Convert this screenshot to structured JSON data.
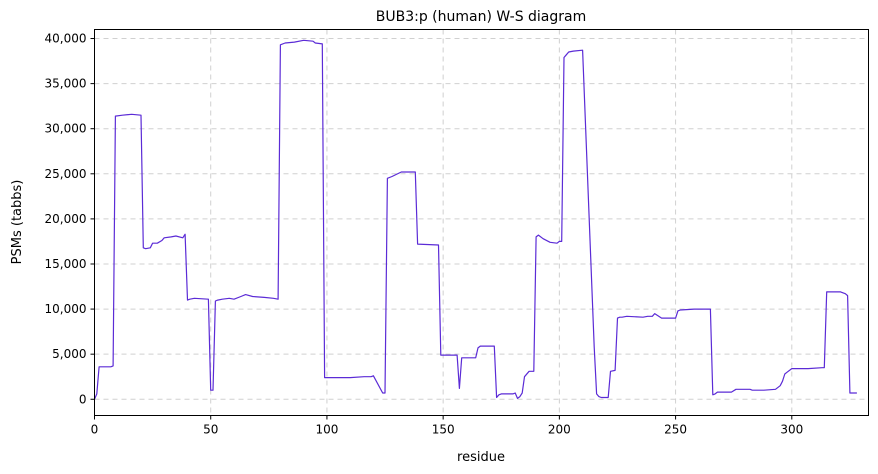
{
  "chart_data": {
    "type": "line",
    "title": "BUB3:p (human) W-S diagram",
    "xlabel": "residue",
    "ylabel": "PSMs (tabbs)",
    "xlim": [
      0,
      333
    ],
    "ylim": [
      -1800,
      41000
    ],
    "x_ticks": [
      0,
      50,
      100,
      150,
      200,
      250,
      300
    ],
    "x_tick_labels": [
      "0",
      "50",
      "100",
      "150",
      "200",
      "250",
      "300"
    ],
    "y_ticks": [
      0,
      5000,
      10000,
      15000,
      20000,
      25000,
      30000,
      35000,
      40000
    ],
    "y_tick_labels": [
      "0",
      "5,000",
      "10,000",
      "15,000",
      "20,000",
      "25,000",
      "30,000",
      "35,000",
      "40,000"
    ],
    "grid": true,
    "line_color": "#5b2bd6",
    "series": [
      {
        "x": [
          0,
          1,
          2,
          7,
          8,
          9,
          12,
          16,
          20,
          21,
          22,
          24,
          25,
          27,
          29,
          30,
          33,
          35,
          38,
          39,
          40,
          41,
          43,
          49,
          50,
          51,
          52,
          53,
          55,
          58,
          60,
          63,
          65,
          68,
          73,
          77,
          79,
          80,
          82,
          86,
          90,
          94,
          95,
          98,
          99,
          100,
          101,
          103,
          110,
          116,
          119,
          120,
          124,
          125,
          126,
          128,
          132,
          138,
          139,
          148,
          149,
          156,
          157,
          158,
          160,
          164,
          165,
          166,
          172,
          173,
          174,
          175,
          179,
          180,
          181,
          182,
          183,
          184,
          185,
          187,
          189,
          190,
          191,
          193,
          196,
          199,
          200,
          201,
          202,
          203,
          204,
          206,
          210,
          215,
          216,
          217,
          218,
          221,
          222,
          224,
          225,
          226,
          227,
          229,
          236,
          238,
          240,
          241,
          244,
          250,
          251,
          252,
          258,
          263,
          264,
          265,
          266,
          267,
          268,
          273,
          274,
          276,
          279,
          282,
          283,
          288,
          293,
          295,
          296,
          297,
          298,
          300,
          302,
          307,
          313,
          314,
          315,
          321,
          322,
          323,
          324,
          325,
          326,
          328
        ],
        "y": [
          0,
          600,
          3600,
          3600,
          3700,
          31400,
          31500,
          31600,
          31500,
          16800,
          16700,
          16800,
          17300,
          17300,
          17600,
          17900,
          18000,
          18100,
          17900,
          18300,
          11000,
          11100,
          11200,
          11100,
          1000,
          1000,
          10900,
          11000,
          11100,
          11200,
          11100,
          11400,
          11600,
          11400,
          11300,
          11200,
          11100,
          39300,
          39500,
          39600,
          39800,
          39700,
          39500,
          39400,
          2400,
          2400,
          2400,
          2400,
          2400,
          2500,
          2500,
          2600,
          700,
          700,
          24500,
          24700,
          25200,
          25200,
          17200,
          17100,
          4900,
          4900,
          1200,
          4600,
          4600,
          4600,
          5700,
          5900,
          5900,
          200,
          500,
          600,
          600,
          600,
          700,
          100,
          300,
          700,
          2500,
          3100,
          3100,
          18000,
          18200,
          17800,
          17400,
          17300,
          17500,
          17500,
          37900,
          38200,
          38500,
          38600,
          38700,
          5800,
          600,
          300,
          200,
          200,
          3100,
          3200,
          9000,
          9100,
          9100,
          9200,
          9100,
          9200,
          9200,
          9500,
          9000,
          9000,
          9800,
          9900,
          10000,
          10000,
          10000,
          10000,
          500,
          600,
          800,
          800,
          800,
          1100,
          1100,
          1100,
          1000,
          1000,
          1100,
          1500,
          2000,
          2800,
          3000,
          3400,
          3400,
          3400,
          3500,
          3500,
          11900,
          11900,
          11800,
          11700,
          11500,
          700,
          700,
          700
        ]
      }
    ]
  }
}
